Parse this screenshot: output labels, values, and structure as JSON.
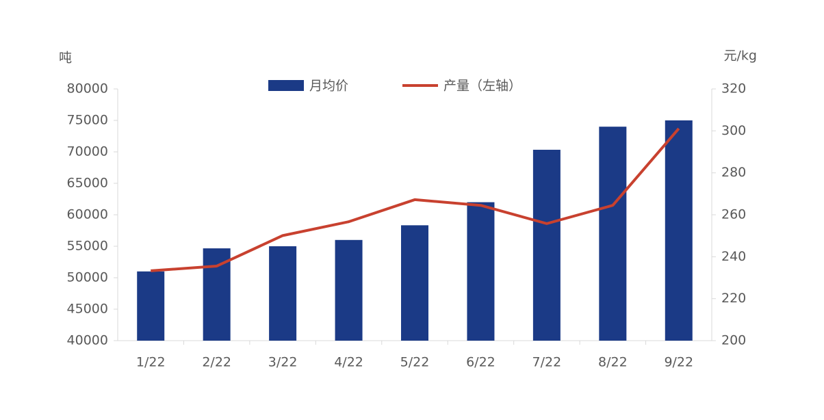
{
  "chart_data": {
    "type": "bar-line",
    "y_label": "吨",
    "y2_label": "元/kg",
    "categories": [
      "1/22",
      "2/22",
      "3/22",
      "4/22",
      "5/22",
      "6/22",
      "7/22",
      "8/22",
      "9/22"
    ],
    "series": [
      {
        "name": "月均价",
        "type": "bar",
        "axis": "y2",
        "color": "#1b3a86",
        "values": [
          233,
          244,
          245,
          248,
          255,
          266,
          291,
          302,
          305
        ]
      },
      {
        "name": "产量（左轴）",
        "type": "line",
        "axis": "y",
        "color": "#c8412f",
        "values": [
          51100,
          51850,
          56700,
          58900,
          62400,
          61500,
          58600,
          61500,
          73700
        ]
      }
    ],
    "ylim": [
      40000,
      80000
    ],
    "yticks": [
      40000,
      45000,
      50000,
      55000,
      60000,
      65000,
      70000,
      75000,
      80000
    ],
    "y2lim": [
      200,
      320
    ],
    "y2ticks": [
      200,
      220,
      240,
      260,
      280,
      300,
      320
    ],
    "legend": "top"
  }
}
